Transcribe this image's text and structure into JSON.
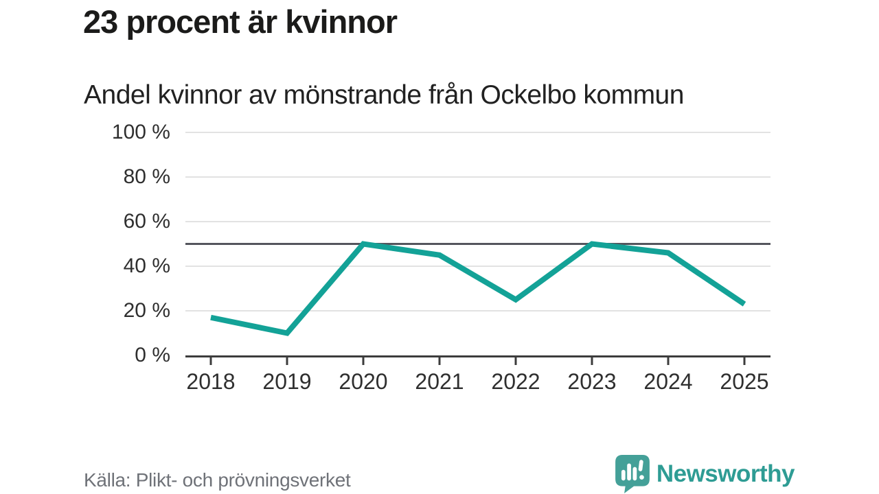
{
  "header": {
    "title": "23 procent är kvinnor",
    "subtitle": "Andel kvinnor av mönstrande från Ockelbo kommun"
  },
  "footer": {
    "source": "Källa: Plikt- och prövningsverket",
    "brand_name": "Newsworthy",
    "brand_icon": "bar-chart-speech-bubble-icon"
  },
  "colors": {
    "line": "#13A297",
    "grid": "#E2E2E2",
    "reference": "#54555D",
    "axis": "#3C3C3C",
    "tick_text": "#2F2F2F",
    "title_text": "#1B1B1A",
    "source_text": "#6F7278",
    "brand": "#2E9C94",
    "brand_icon_fill": "#44A098"
  },
  "chart_data": {
    "type": "line",
    "title": "Andel kvinnor av mönstrande från Ockelbo kommun",
    "categories": [
      "2018",
      "2019",
      "2020",
      "2021",
      "2022",
      "2023",
      "2024",
      "2025"
    ],
    "values": [
      17,
      10,
      50,
      45,
      25,
      50,
      46,
      23
    ],
    "unit": "%",
    "xlabel": "",
    "ylabel": "",
    "ylim": [
      0,
      100
    ],
    "yticks": [
      0,
      20,
      40,
      60,
      80,
      100
    ],
    "ytick_labels": [
      "0 %",
      "20 %",
      "40 %",
      "60 %",
      "80 %",
      "100 %"
    ],
    "reference_line": 50,
    "grid": true,
    "legend": "none",
    "line_color": "#13A297"
  }
}
